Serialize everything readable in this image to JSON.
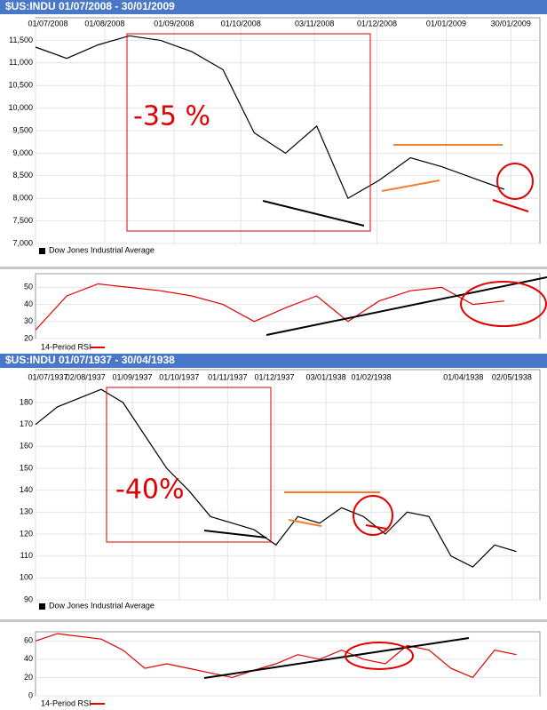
{
  "chart_data": [
    {
      "type": "line",
      "title": "$US:INDU 01/07/2008 - 30/01/2009",
      "x": [
        "01/07/2008",
        "15/07/2008",
        "29/07/2008",
        "12/08/2008",
        "26/08/2008",
        "09/09/2008",
        "23/09/2008",
        "07/10/2008",
        "21/10/2008",
        "04/11/2008",
        "18/11/2008",
        "02/12/2008",
        "16/12/2008",
        "30/12/2008",
        "13/01/2009",
        "27/01/2009"
      ],
      "series": [
        {
          "name": "Dow Jones Industrial Average",
          "color": "#000000",
          "values": [
            11350,
            11100,
            11400,
            11600,
            11500,
            11250,
            10850,
            9450,
            9000,
            9600,
            8000,
            8400,
            8900,
            8700,
            8450,
            8200
          ]
        }
      ],
      "xlim": [
        "01/07/2008",
        "12/02/2009"
      ],
      "xticks": [
        "01/07/2008",
        "01/08/2008",
        "01/09/2008",
        "01/10/2008",
        "03/11/2008",
        "01/12/2008",
        "01/01/2009",
        "30/01/2009"
      ],
      "ylim": [
        7000,
        12000
      ],
      "yticks": [
        {
          "value": 7000,
          "label": "7,000"
        },
        {
          "value": 7500,
          "label": "7,500"
        },
        {
          "value": 8000,
          "label": "8,000"
        },
        {
          "value": 8500,
          "label": "8,500"
        },
        {
          "value": 9000,
          "label": "9,000"
        },
        {
          "value": 9500,
          "label": "9,500"
        },
        {
          "value": 10000,
          "label": "10,000"
        },
        {
          "value": 10500,
          "label": "10,500"
        },
        {
          "value": 11000,
          "label": "11,000"
        },
        {
          "value": 11500,
          "label": "11,500"
        }
      ],
      "grid": true,
      "annotation": "-35 %"
    },
    {
      "type": "line",
      "x": [
        "01/07/2008",
        "15/07/2008",
        "29/07/2008",
        "12/08/2008",
        "26/08/2008",
        "09/09/2008",
        "23/09/2008",
        "07/10/2008",
        "21/10/2008",
        "04/11/2008",
        "18/11/2008",
        "02/12/2008",
        "16/12/2008",
        "30/12/2008",
        "13/01/2009",
        "27/01/2009"
      ],
      "series": [
        {
          "name": "14-Period RSI",
          "color": "#e00000",
          "values": [
            25,
            45,
            52,
            50,
            48,
            45,
            40,
            30,
            38,
            45,
            30,
            42,
            48,
            50,
            40,
            42
          ]
        }
      ],
      "xlim": [
        "01/07/2008",
        "12/02/2009"
      ],
      "ylim": [
        20,
        58
      ],
      "yticks": [
        20,
        30,
        40,
        50
      ],
      "grid": true
    },
    {
      "type": "line",
      "title": "$US:INDU 01/07/1937 - 30/04/1938",
      "x": [
        "01/07/1937",
        "15/07/1937",
        "29/07/1937",
        "12/08/1937",
        "26/08/1937",
        "09/09/1937",
        "23/09/1937",
        "07/10/1937",
        "21/10/1937",
        "04/11/1937",
        "18/11/1937",
        "02/12/1937",
        "16/12/1937",
        "30/12/1937",
        "13/01/1938",
        "27/01/1938",
        "10/02/1938",
        "24/02/1938",
        "10/03/1938",
        "24/03/1938",
        "07/04/1938",
        "21/04/1938",
        "05/05/1938"
      ],
      "series": [
        {
          "name": "Dow Jones Industrial Average",
          "color": "#000000",
          "values": [
            170,
            178,
            182,
            186,
            180,
            165,
            150,
            140,
            128,
            125,
            122,
            115,
            128,
            125,
            132,
            128,
            120,
            130,
            128,
            110,
            105,
            115,
            112
          ]
        }
      ],
      "xlim": [
        "01/07/1937",
        "20/05/1938"
      ],
      "xticks": [
        "01/07/1937",
        "02/08/1937",
        "01/09/1937",
        "01/10/1937",
        "01/11/1937",
        "01/12/1937",
        "03/01/1938",
        "01/02/1938",
        "01/04/1938",
        "02/05/1938"
      ],
      "ylim": [
        90,
        195
      ],
      "yticks": [
        90,
        100,
        110,
        120,
        130,
        140,
        150,
        160,
        170,
        180
      ],
      "grid": true,
      "annotation": "-40%"
    },
    {
      "type": "line",
      "x": [
        "01/07/1937",
        "15/07/1937",
        "29/07/1937",
        "12/08/1937",
        "26/08/1937",
        "09/09/1937",
        "23/09/1937",
        "07/10/1937",
        "21/10/1937",
        "04/11/1937",
        "18/11/1937",
        "02/12/1937",
        "16/12/1937",
        "30/12/1937",
        "13/01/1938",
        "27/01/1938",
        "10/02/1938",
        "24/02/1938",
        "10/03/1938",
        "24/03/1938",
        "07/04/1938",
        "21/04/1938",
        "05/05/1938"
      ],
      "series": [
        {
          "name": "14-Period RSI",
          "color": "#e00000",
          "values": [
            60,
            68,
            65,
            62,
            50,
            30,
            35,
            30,
            25,
            20,
            28,
            35,
            45,
            40,
            50,
            40,
            35,
            55,
            50,
            30,
            20,
            50,
            45
          ]
        }
      ],
      "xlim": [
        "01/07/1937",
        "20/05/1938"
      ],
      "ylim": [
        0,
        70
      ],
      "yticks": [
        0,
        20,
        40,
        60
      ],
      "grid": true
    }
  ]
}
